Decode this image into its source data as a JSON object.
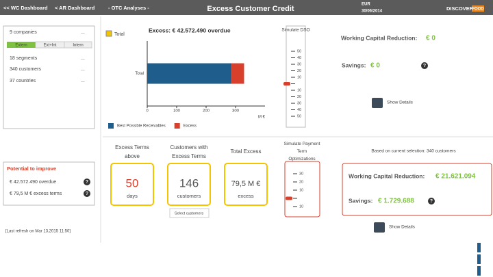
{
  "nav": {
    "wc": "<< WC Dashboard",
    "ar": "< AR Dashboard",
    "otc": "- OTC Analyses -",
    "title": "Excess Customer Credit",
    "currency": "EUR",
    "date": "30/06/2014",
    "logo": "DISCOVER",
    "logo_badge": "FOOD"
  },
  "filters": {
    "companies": "9 companies",
    "scope": [
      "Extern",
      "Ext+Int",
      "Intern"
    ],
    "segments": "18 segments",
    "customers": "340 customers",
    "countries": "37 countries",
    "more": "..."
  },
  "chart": {
    "checkbox": "Total",
    "title": "Excess: € 42.572.490 overdue",
    "categories": [
      "Total"
    ],
    "series": [
      {
        "name": "Best Possible Receivables",
        "color": "#1f5d8c",
        "values": [
          286.4
        ]
      },
      {
        "name": "Excess",
        "color": "#d9402b",
        "values": [
          42.6
        ]
      }
    ],
    "xlim": [
      0,
      400
    ],
    "xticks": [
      0,
      100,
      200,
      300
    ],
    "x_unit": "M €"
  },
  "simulate_dso": {
    "title": "Simulate DSO",
    "ticks": [
      "50",
      "40",
      "30",
      "20",
      "10",
      "10",
      "20",
      "30",
      "40",
      "50"
    ]
  },
  "top_result": {
    "wcr_label": "Working Capital Reduction:",
    "wcr_value": "€ 0",
    "savings_label": "Savings:",
    "savings_value": "€ 0",
    "help": "?",
    "details": "Show Details"
  },
  "potential": {
    "title": "Potential to improve",
    "items": [
      "€ 42.572.490 overdue",
      "€ 79,5 M € excess terms"
    ],
    "help": "?",
    "refresh": "[Last refresh on Mar 13,2015 11:50]"
  },
  "kpis": [
    {
      "header": "Excess Terms above",
      "value": "50",
      "unit": "days"
    },
    {
      "header": "Customers with Excess Terms",
      "value": "146",
      "unit": "customers"
    },
    {
      "header": "Total Excess",
      "value": "79,5 M €",
      "unit": "excess"
    }
  ],
  "select_button": "Select customers",
  "simulate_terms": {
    "title": "Simulate Payment Term Optimizations",
    "ticks": [
      "30",
      "20",
      "10",
      "10"
    ]
  },
  "bottom_result": {
    "selection": "Based on current selection: 340 customers",
    "wcr_label": "Working Capital Reduction:",
    "wcr_value": "€ 21.621.094",
    "savings_label": "Savings:",
    "savings_value": "€ 1.729.688",
    "help": "?",
    "details": "Show Details"
  }
}
